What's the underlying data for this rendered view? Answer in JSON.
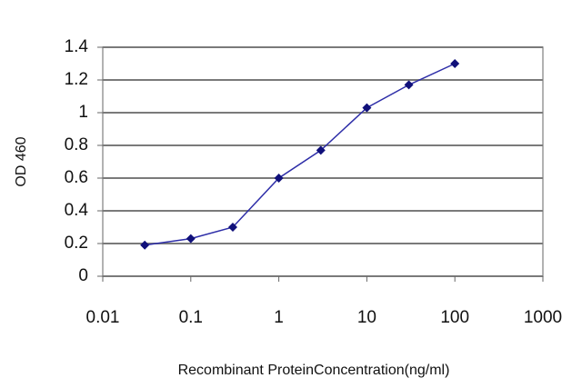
{
  "chart_data": {
    "type": "line",
    "x_label": "Recombinant ProteinConcentration(ng/ml)",
    "y_label": "OD 460",
    "x": [
      0.03,
      0.1,
      0.3,
      1,
      3,
      10,
      30,
      100
    ],
    "series": [
      {
        "color": "#2e2ea8",
        "values": [
          0.19,
          0.23,
          0.3,
          0.6,
          0.77,
          1.03,
          1.17,
          1.3
        ]
      }
    ],
    "xlim": [
      0.01,
      1000
    ],
    "xticks": [
      0.01,
      0.1,
      1,
      10,
      100,
      1000
    ],
    "xscale": "log",
    "ylim": [
      0,
      1.4
    ],
    "yticks": [
      0,
      0.2,
      0.4,
      0.6,
      0.8,
      1,
      1.2,
      1.4
    ],
    "grid": true
  }
}
